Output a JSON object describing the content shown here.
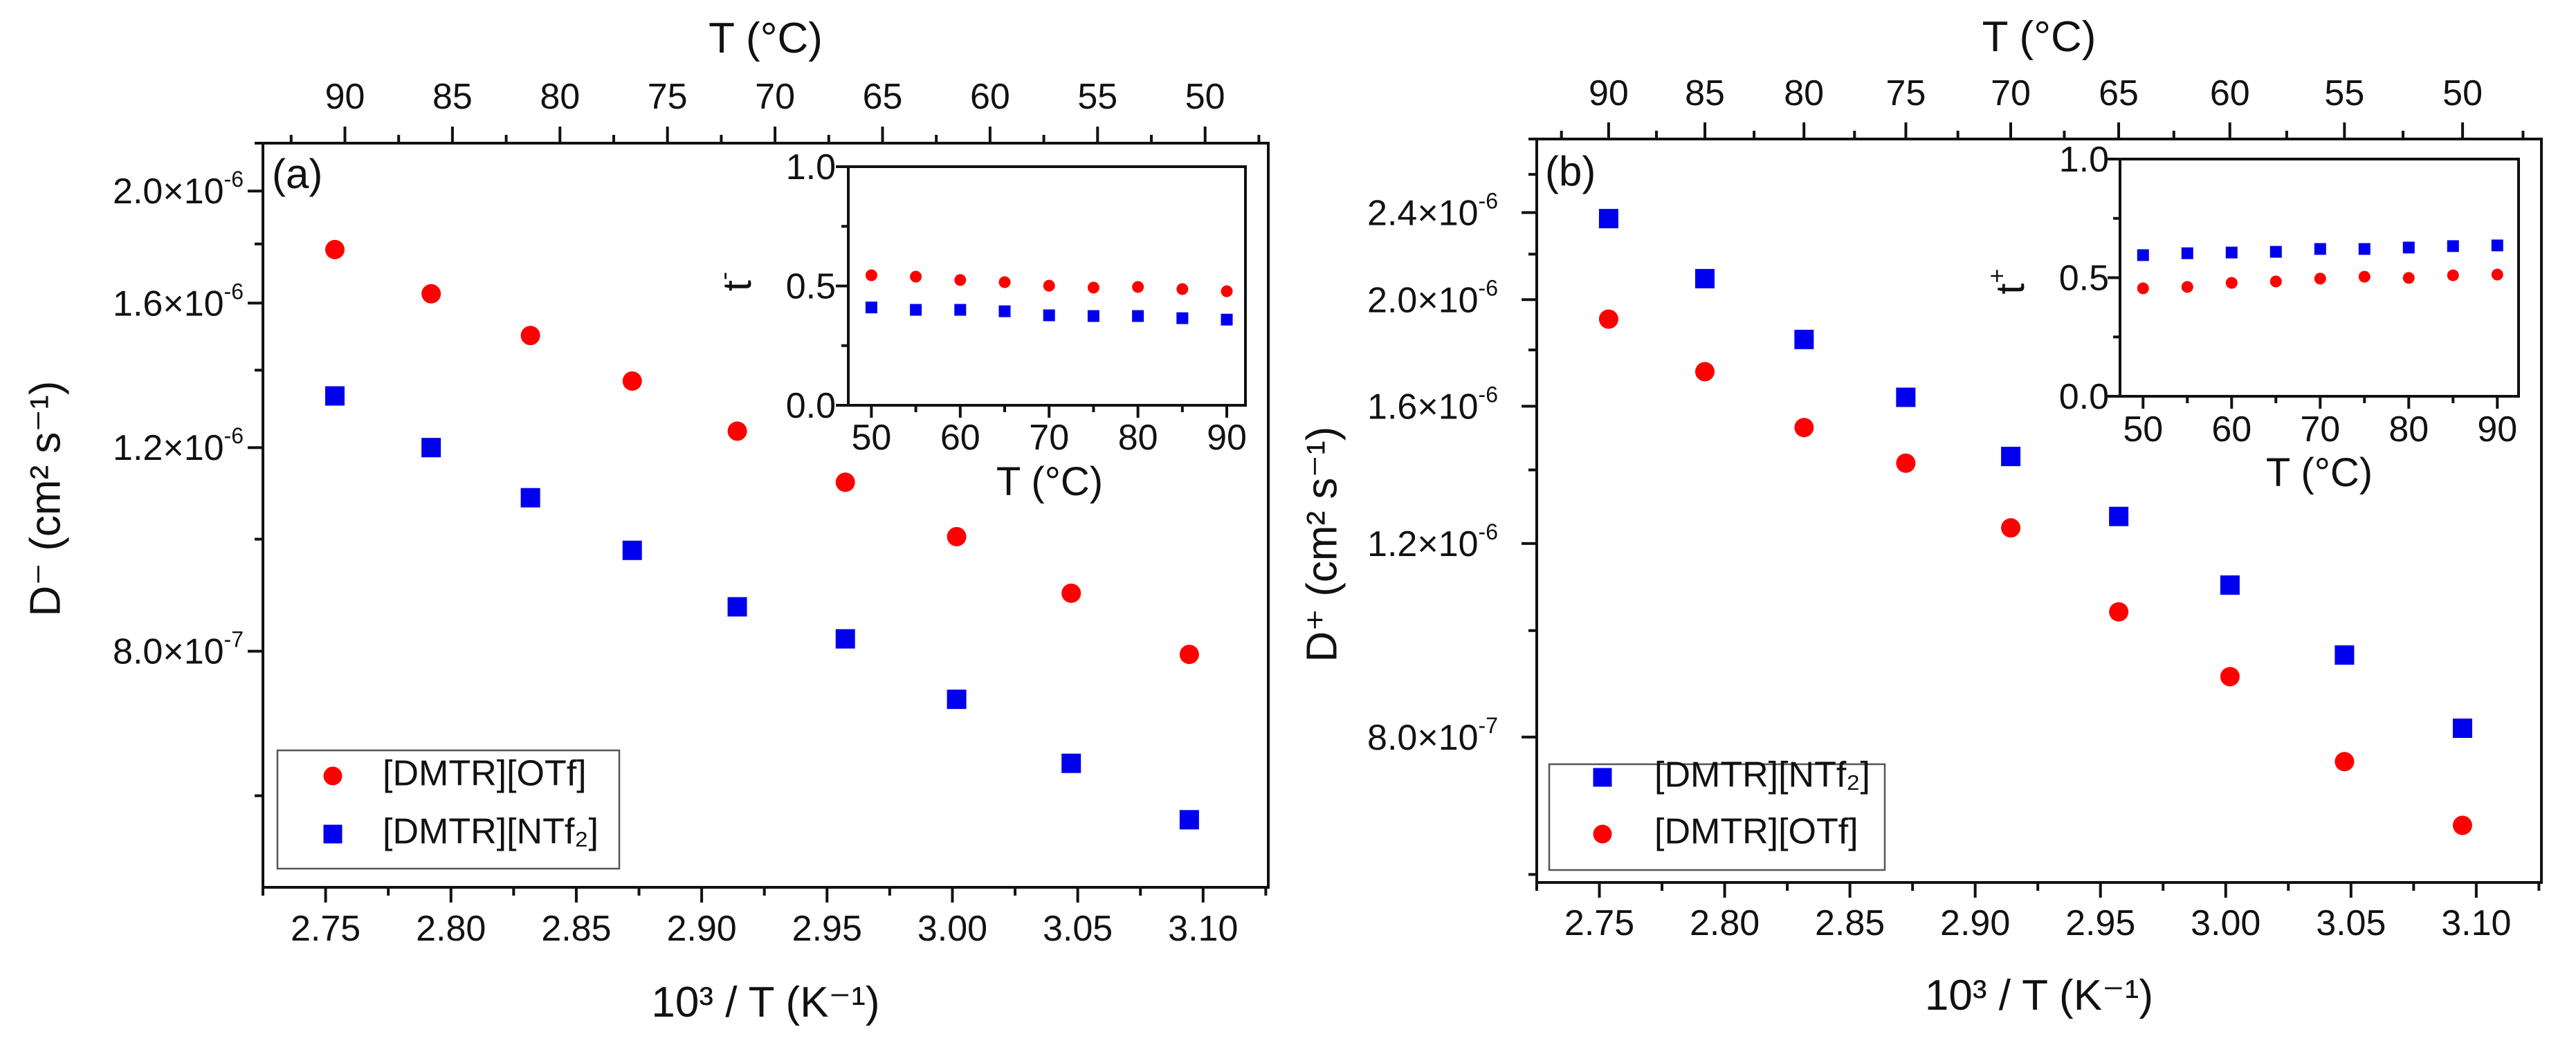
{
  "chart_data": [
    {
      "type": "scatter",
      "panel_label": "(a)",
      "xlabel": "10³ / T (K⁻¹)",
      "top_xlabel": "T (°C)",
      "ylabel": "D⁻ (cm² s⁻¹)",
      "xscale": "linear",
      "yscale": "log",
      "xlim": [
        2.725,
        3.126
      ],
      "ylim": [
        5e-07,
        2.2e-06
      ],
      "x_ticks": [
        {
          "v": 2.75,
          "label": "2.75"
        },
        {
          "v": 2.8,
          "label": "2.80"
        },
        {
          "v": 2.85,
          "label": "2.85"
        },
        {
          "v": 2.9,
          "label": "2.90"
        },
        {
          "v": 2.95,
          "label": "2.95"
        },
        {
          "v": 3.0,
          "label": "3.00"
        },
        {
          "v": 3.05,
          "label": "3.05"
        },
        {
          "v": 3.1,
          "label": "3.10"
        }
      ],
      "y_ticks": [
        {
          "v": 8e-07,
          "base": "8.0×10",
          "exp": "-7"
        },
        {
          "v": 1.2e-06,
          "base": "1.2×10",
          "exp": "-6"
        },
        {
          "v": 1.6e-06,
          "base": "1.6×10",
          "exp": "-6"
        },
        {
          "v": 2e-06,
          "base": "2.0×10",
          "exp": "-6"
        }
      ],
      "top_axis": {
        "scale": "linear",
        "T_ref": [
          90,
          50
        ],
        "x_ref": [
          2.7577,
          3.1008
        ],
        "ticks": [
          {
            "T": 90,
            "label": "90"
          },
          {
            "T": 85,
            "label": "85"
          },
          {
            "T": 80,
            "label": "80"
          },
          {
            "T": 75,
            "label": "75"
          },
          {
            "T": 70,
            "label": "70"
          },
          {
            "T": 65,
            "label": "65"
          },
          {
            "T": 60,
            "label": "60"
          },
          {
            "T": 55,
            "label": "55"
          },
          {
            "T": 50,
            "label": "50"
          }
        ]
      },
      "series": [
        {
          "name": "[DMTR][OTf]",
          "marker": "circle",
          "color": "#ff0000",
          "x": [
            2.7537,
            2.7921,
            2.8317,
            2.8723,
            2.9142,
            2.9573,
            3.0017,
            3.0474,
            3.0945
          ],
          "y": [
            1.78e-06,
            1.63e-06,
            1.5e-06,
            1.37e-06,
            1.24e-06,
            1.12e-06,
            1.005e-06,
            8.98e-07,
            7.95e-07
          ]
        },
        {
          "name": "[DMTR][NTf₂]",
          "marker": "square",
          "color": "#0000ee",
          "x": [
            2.7537,
            2.7921,
            2.8317,
            2.8723,
            2.9142,
            2.9573,
            3.0017,
            3.0474,
            3.0945
          ],
          "y": [
            1.33e-06,
            1.2e-06,
            1.086e-06,
            9.78e-07,
            8.74e-07,
            8.2e-07,
            7.27e-07,
            6.4e-07,
            5.72e-07
          ]
        }
      ],
      "legend": {
        "position": "bottom-left",
        "order": [
          0,
          1
        ]
      },
      "inset": {
        "type": "scatter",
        "xlabel": "T (°C)",
        "ylabel": "t",
        "ylabel_sup": "-",
        "xlim": [
          47.4,
          92.1
        ],
        "ylim": [
          0,
          1
        ],
        "x_ticks": [
          {
            "v": 50,
            "label": "50"
          },
          {
            "v": 60,
            "label": "60"
          },
          {
            "v": 70,
            "label": "70"
          },
          {
            "v": 80,
            "label": "80"
          },
          {
            "v": 90,
            "label": "90"
          }
        ],
        "y_ticks": [
          {
            "v": 0,
            "label": "0.0"
          },
          {
            "v": 0.5,
            "label": "0.5"
          },
          {
            "v": 1.0,
            "label": "1.0"
          }
        ],
        "series": [
          {
            "name": "[DMTR][OTf]",
            "marker": "circle",
            "color": "#ff0000",
            "x": [
              50,
              55,
              60,
              65,
              70,
              75,
              80,
              85,
              90
            ],
            "y": [
              0.545,
              0.539,
              0.525,
              0.516,
              0.501,
              0.493,
              0.496,
              0.487,
              0.478
            ]
          },
          {
            "name": "[DMTR][NTf₂]",
            "marker": "square",
            "color": "#0000ee",
            "x": [
              50,
              55,
              60,
              65,
              70,
              75,
              80,
              85,
              90
            ],
            "y": [
              0.41,
              0.4,
              0.4,
              0.394,
              0.377,
              0.374,
              0.374,
              0.365,
              0.359
            ]
          }
        ]
      }
    },
    {
      "type": "scatter",
      "panel_label": "(b)",
      "xlabel": "10³ / T (K⁻¹)",
      "top_xlabel": "T (°C)",
      "ylabel": "D⁺ (cm² s⁻¹)",
      "xscale": "linear",
      "yscale": "log",
      "xlim": [
        2.725,
        3.126
      ],
      "ylim": [
        5.9e-07,
        2.8e-06
      ],
      "x_ticks": [
        {
          "v": 2.75,
          "label": "2.75"
        },
        {
          "v": 2.8,
          "label": "2.80"
        },
        {
          "v": 2.85,
          "label": "2.85"
        },
        {
          "v": 2.9,
          "label": "2.90"
        },
        {
          "v": 2.95,
          "label": "2.95"
        },
        {
          "v": 3.0,
          "label": "3.00"
        },
        {
          "v": 3.05,
          "label": "3.05"
        },
        {
          "v": 3.1,
          "label": "3.10"
        }
      ],
      "y_ticks": [
        {
          "v": 8e-07,
          "base": "8.0×10",
          "exp": "-7"
        },
        {
          "v": 1.2e-06,
          "base": "1.2×10",
          "exp": "-6"
        },
        {
          "v": 1.6e-06,
          "base": "1.6×10",
          "exp": "-6"
        },
        {
          "v": 2e-06,
          "base": "2.0×10",
          "exp": "-6"
        },
        {
          "v": 2.4e-06,
          "base": "2.4×10",
          "exp": "-6"
        }
      ],
      "top_axis": {
        "scale": "reciprocal",
        "ticks": [
          {
            "T": 90,
            "label": "90"
          },
          {
            "T": 85,
            "label": "85"
          },
          {
            "T": 80,
            "label": "80"
          },
          {
            "T": 75,
            "label": "75"
          },
          {
            "T": 70,
            "label": "70"
          },
          {
            "T": 65,
            "label": "65"
          },
          {
            "T": 60,
            "label": "60"
          },
          {
            "T": 55,
            "label": "55"
          },
          {
            "T": 50,
            "label": "50"
          }
        ]
      },
      "series": [
        {
          "name": "[DMTR][NTf₂]",
          "marker": "square",
          "color": "#0000ee",
          "x": [
            2.7537,
            2.7921,
            2.8317,
            2.8723,
            2.9142,
            2.9573,
            3.0017,
            3.0474,
            3.0945
          ],
          "y": [
            2.37e-06,
            2.09e-06,
            1.84e-06,
            1.63e-06,
            1.44e-06,
            1.27e-06,
            1.1e-06,
            9.5e-07,
            8.15e-07
          ]
        },
        {
          "name": "[DMTR][OTf]",
          "marker": "circle",
          "color": "#ff0000",
          "x": [
            2.7537,
            2.7921,
            2.8317,
            2.8723,
            2.9142,
            2.9573,
            3.0017,
            3.0474,
            3.0945
          ],
          "y": [
            1.92e-06,
            1.72e-06,
            1.53e-06,
            1.42e-06,
            1.24e-06,
            1.04e-06,
            9.08e-07,
            7.6e-07,
            6.65e-07
          ]
        }
      ],
      "legend": {
        "position": "bottom-left",
        "order": [
          0,
          1
        ]
      },
      "inset": {
        "type": "scatter",
        "xlabel": "T (°C)",
        "ylabel": "t",
        "ylabel_sup": "+",
        "xlim": [
          47.4,
          92.4
        ],
        "ylim": [
          0,
          1
        ],
        "x_ticks": [
          {
            "v": 50,
            "label": "50"
          },
          {
            "v": 60,
            "label": "60"
          },
          {
            "v": 70,
            "label": "70"
          },
          {
            "v": 80,
            "label": "80"
          },
          {
            "v": 90,
            "label": "90"
          }
        ],
        "y_ticks": [
          {
            "v": 0,
            "label": "0.0"
          },
          {
            "v": 0.5,
            "label": "0.5"
          },
          {
            "v": 1.0,
            "label": "1.0"
          }
        ],
        "series": [
          {
            "name": "[DMTR][NTf₂]",
            "marker": "square",
            "color": "#0000ee",
            "x": [
              50,
              55,
              60,
              65,
              70,
              75,
              80,
              85,
              90
            ],
            "y": [
              0.595,
              0.603,
              0.606,
              0.609,
              0.621,
              0.621,
              0.627,
              0.633,
              0.636
            ]
          },
          {
            "name": "[DMTR][OTf]",
            "marker": "circle",
            "color": "#ff0000",
            "x": [
              50,
              55,
              60,
              65,
              70,
              75,
              80,
              85,
              90
            ],
            "y": [
              0.455,
              0.461,
              0.478,
              0.484,
              0.496,
              0.504,
              0.499,
              0.51,
              0.513
            ]
          }
        ]
      }
    }
  ]
}
